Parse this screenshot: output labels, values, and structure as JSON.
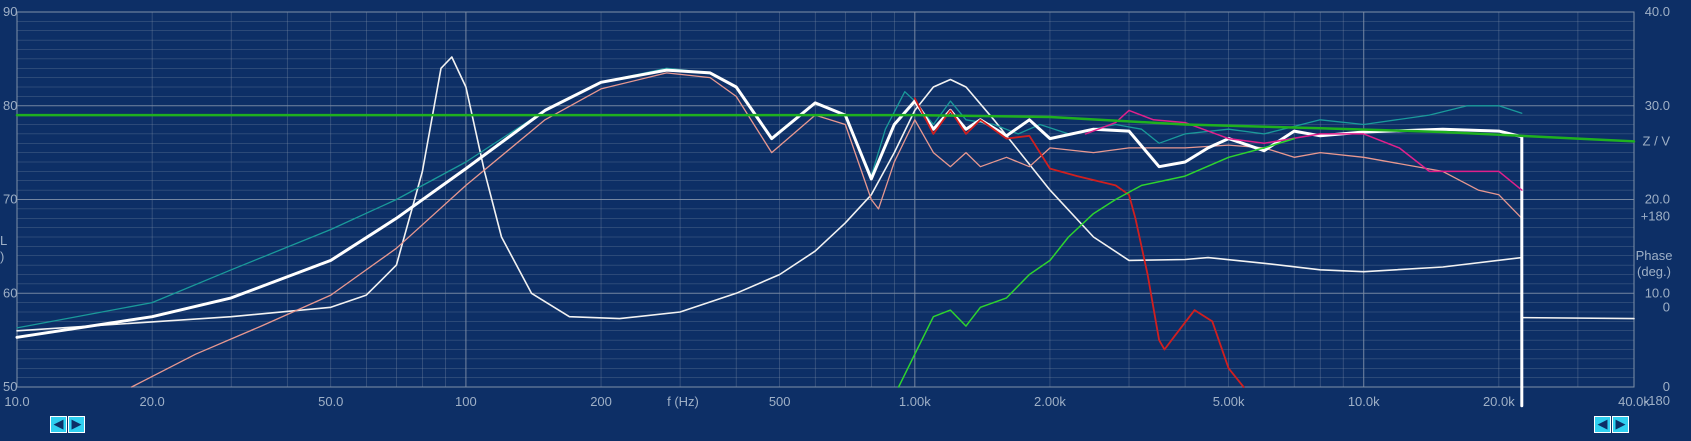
{
  "chart_data": {
    "type": "line",
    "xscale": "log",
    "xlim": [
      10,
      40000
    ],
    "ylim": [
      50,
      90
    ],
    "x_ticks": [
      {
        "v": 10,
        "label": "10.0"
      },
      {
        "v": 20,
        "label": "20.0"
      },
      {
        "v": 50,
        "label": "50.0"
      },
      {
        "v": 100,
        "label": "100"
      },
      {
        "v": 200,
        "label": "200"
      },
      {
        "v": 500,
        "label": "500"
      },
      {
        "v": 1000,
        "label": "1.00k"
      },
      {
        "v": 2000,
        "label": "2.00k"
      },
      {
        "v": 5000,
        "label": "5.00k"
      },
      {
        "v": 10000,
        "label": "10.0k"
      },
      {
        "v": 20000,
        "label": "20.0k"
      },
      {
        "v": 40000,
        "label": "40.0k"
      }
    ],
    "xlabel": "f (Hz)",
    "y_left_ticks": [
      {
        "v": 90,
        "label": "90"
      },
      {
        "v": 80,
        "label": "80"
      },
      {
        "v": 70,
        "label": "70"
      },
      {
        "v": 60,
        "label": "60"
      },
      {
        "v": 50,
        "label": "50"
      }
    ],
    "y_left_label": [
      "L",
      ")"
    ],
    "y_right_ticks": [
      {
        "v": 90,
        "label": "40.0"
      },
      {
        "v": 80,
        "label": "30.0"
      },
      {
        "v": 70,
        "label": "20.0"
      },
      {
        "v": 60,
        "label": "10.0"
      },
      {
        "v": 50,
        "label": "0"
      }
    ],
    "y_right_mid": [
      {
        "v": 76.2,
        "label": "Z / V"
      },
      {
        "v": 68.2,
        "label": "+180"
      },
      {
        "v": 58.5,
        "label": "0"
      },
      {
        "v": 48.5,
        "label": "-180"
      }
    ],
    "phase_label": {
      "v": 64,
      "lines": [
        "Phase",
        "(deg.)"
      ]
    },
    "grid": true,
    "series": [
      {
        "key": "phase",
        "color": "#f2f2f2",
        "width": 1.6,
        "points": [
          [
            10,
            56
          ],
          [
            30,
            57.5
          ],
          [
            50,
            58.5
          ],
          [
            60,
            59.8
          ],
          [
            70,
            63
          ],
          [
            80,
            73
          ],
          [
            88,
            84
          ],
          [
            93,
            85.2
          ],
          [
            100,
            82
          ],
          [
            110,
            73
          ],
          [
            120,
            66
          ],
          [
            140,
            60
          ],
          [
            170,
            57.5
          ],
          [
            220,
            57.3
          ],
          [
            300,
            58
          ],
          [
            400,
            60
          ],
          [
            500,
            62
          ],
          [
            600,
            64.5
          ],
          [
            700,
            67.5
          ],
          [
            800,
            70.5
          ],
          [
            900,
            75
          ],
          [
            1000,
            79.5
          ],
          [
            1100,
            82
          ],
          [
            1200,
            82.8
          ],
          [
            1300,
            82
          ],
          [
            1500,
            78.5
          ],
          [
            2000,
            71
          ],
          [
            2500,
            66
          ],
          [
            3000,
            63.5
          ],
          [
            4000,
            63.6
          ],
          [
            4500,
            63.8
          ],
          [
            6000,
            63.2
          ],
          [
            8000,
            62.5
          ],
          [
            10000,
            62.3
          ],
          [
            15000,
            62.8
          ],
          [
            22500,
            63.8
          ],
          [
            22500,
            48
          ],
          [
            22530,
            57.4
          ],
          [
            40000,
            57.3
          ]
        ]
      },
      {
        "key": "teal",
        "color": "#1a9a9a",
        "width": 1.3,
        "points": [
          [
            10,
            56.3
          ],
          [
            20,
            59
          ],
          [
            30,
            62.5
          ],
          [
            50,
            66.8
          ],
          [
            70,
            70
          ],
          [
            100,
            74
          ],
          [
            150,
            79.5
          ],
          [
            200,
            82.5
          ],
          [
            280,
            84
          ],
          [
            350,
            83.5
          ],
          [
            400,
            82
          ],
          [
            480,
            76.5
          ],
          [
            600,
            80.2
          ],
          [
            700,
            79
          ],
          [
            800,
            72.5
          ],
          [
            860,
            77.5
          ],
          [
            950,
            81.5
          ],
          [
            1000,
            80.5
          ],
          [
            1100,
            78
          ],
          [
            1200,
            80.5
          ],
          [
            1300,
            78.5
          ],
          [
            1500,
            78
          ],
          [
            1700,
            77
          ],
          [
            1900,
            78
          ],
          [
            2200,
            77
          ],
          [
            2800,
            78
          ],
          [
            3200,
            77.5
          ],
          [
            3500,
            76
          ],
          [
            4000,
            77
          ],
          [
            5000,
            77.5
          ],
          [
            6000,
            77
          ],
          [
            7000,
            77.8
          ],
          [
            8000,
            78.5
          ],
          [
            10000,
            78
          ],
          [
            14000,
            79
          ],
          [
            17000,
            80
          ],
          [
            20000,
            80
          ],
          [
            22500,
            79.2
          ]
        ]
      },
      {
        "key": "salmon",
        "color": "#e89890",
        "width": 1.3,
        "points": [
          [
            18,
            50
          ],
          [
            25,
            53.5
          ],
          [
            35,
            56.5
          ],
          [
            50,
            59.8
          ],
          [
            70,
            64.8
          ],
          [
            100,
            71.5
          ],
          [
            150,
            78.5
          ],
          [
            200,
            81.8
          ],
          [
            280,
            83.5
          ],
          [
            350,
            83
          ],
          [
            400,
            81
          ],
          [
            480,
            75
          ],
          [
            600,
            79
          ],
          [
            700,
            78
          ],
          [
            800,
            70
          ],
          [
            830,
            69
          ],
          [
            900,
            74
          ],
          [
            1000,
            78.5
          ],
          [
            1100,
            75
          ],
          [
            1200,
            73.5
          ],
          [
            1300,
            75
          ],
          [
            1400,
            73.5
          ],
          [
            1600,
            74.5
          ],
          [
            1800,
            73.5
          ],
          [
            2000,
            75.5
          ],
          [
            2500,
            75
          ],
          [
            3000,
            75.5
          ],
          [
            4000,
            75.5
          ],
          [
            5000,
            75.8
          ],
          [
            6000,
            75.5
          ],
          [
            7000,
            74.5
          ],
          [
            8000,
            75
          ],
          [
            10000,
            74.5
          ],
          [
            15000,
            73
          ],
          [
            18000,
            71
          ],
          [
            20000,
            70.5
          ],
          [
            22500,
            68
          ]
        ]
      },
      {
        "key": "white-main",
        "color": "#ffffff",
        "width": 3,
        "points": [
          [
            10,
            55.3
          ],
          [
            20,
            57.5
          ],
          [
            30,
            59.5
          ],
          [
            50,
            63.5
          ],
          [
            70,
            68
          ],
          [
            100,
            73.3
          ],
          [
            150,
            79.5
          ],
          [
            200,
            82.5
          ],
          [
            280,
            83.8
          ],
          [
            350,
            83.5
          ],
          [
            400,
            82
          ],
          [
            480,
            76.5
          ],
          [
            600,
            80.3
          ],
          [
            700,
            79
          ],
          [
            800,
            72.2
          ],
          [
            900,
            78
          ],
          [
            1000,
            80.5
          ],
          [
            1100,
            77.5
          ],
          [
            1200,
            79.5
          ],
          [
            1300,
            77.5
          ],
          [
            1400,
            78.5
          ],
          [
            1600,
            76.8
          ],
          [
            1800,
            78.5
          ],
          [
            2000,
            76.5
          ],
          [
            2500,
            77.5
          ],
          [
            3000,
            77.3
          ],
          [
            3500,
            73.5
          ],
          [
            4000,
            74
          ],
          [
            4500,
            75.5
          ],
          [
            5000,
            76.5
          ],
          [
            6000,
            75.2
          ],
          [
            7000,
            77.3
          ],
          [
            8000,
            76.8
          ],
          [
            10000,
            77.2
          ],
          [
            15000,
            77.5
          ],
          [
            20000,
            77.3
          ],
          [
            22500,
            76.7
          ],
          [
            22500,
            48
          ]
        ]
      },
      {
        "key": "red",
        "color": "#d01f1f",
        "width": 1.8,
        "points": [
          [
            1000,
            80.8
          ],
          [
            1100,
            77
          ],
          [
            1200,
            79.5
          ],
          [
            1300,
            77
          ],
          [
            1400,
            78.5
          ],
          [
            1600,
            76.5
          ],
          [
            1800,
            76.8
          ],
          [
            2000,
            73.3
          ],
          [
            2300,
            72.5
          ],
          [
            2800,
            71.5
          ],
          [
            3000,
            70.5
          ],
          [
            3100,
            68
          ],
          [
            3300,
            62
          ],
          [
            3500,
            55
          ],
          [
            3600,
            54
          ],
          [
            3800,
            55.5
          ],
          [
            4200,
            58.2
          ],
          [
            4600,
            57
          ],
          [
            5000,
            52
          ],
          [
            5400,
            50
          ]
        ]
      },
      {
        "key": "magenta",
        "color": "#e0208c",
        "width": 1.5,
        "points": [
          [
            2400,
            77
          ],
          [
            2800,
            78.2
          ],
          [
            3000,
            79.5
          ],
          [
            3400,
            78.5
          ],
          [
            4000,
            78.2
          ],
          [
            5000,
            76.5
          ],
          [
            6000,
            76
          ],
          [
            8000,
            77
          ],
          [
            10000,
            77
          ],
          [
            12000,
            75.5
          ],
          [
            14000,
            73
          ],
          [
            17000,
            73
          ],
          [
            20000,
            73
          ],
          [
            22500,
            71
          ]
        ]
      },
      {
        "key": "green-rising",
        "color": "#2ed42e",
        "width": 1.5,
        "points": [
          [
            920,
            50
          ],
          [
            1000,
            53.5
          ],
          [
            1100,
            57.5
          ],
          [
            1200,
            58.2
          ],
          [
            1300,
            56.5
          ],
          [
            1400,
            58.5
          ],
          [
            1600,
            59.5
          ],
          [
            1800,
            62
          ],
          [
            2000,
            63.5
          ],
          [
            2200,
            66
          ],
          [
            2500,
            68.5
          ],
          [
            2800,
            70
          ],
          [
            3200,
            71.5
          ],
          [
            4000,
            72.5
          ],
          [
            5000,
            74.5
          ],
          [
            6000,
            75.5
          ],
          [
            7000,
            76.5
          ]
        ]
      },
      {
        "key": "green-flat",
        "color": "#1fb01f",
        "width": 2.5,
        "points": [
          [
            10,
            79
          ],
          [
            500,
            79
          ],
          [
            1000,
            79
          ],
          [
            2000,
            78.8
          ],
          [
            4000,
            78
          ],
          [
            8000,
            77.6
          ],
          [
            15000,
            77.2
          ],
          [
            40000,
            76.2
          ]
        ]
      }
    ]
  },
  "nav": {
    "left": "⇆",
    "right": "⇆"
  },
  "colors": {
    "background": "#0d2f66",
    "grid": "#8090a8",
    "axis": "#9fb0c6"
  }
}
